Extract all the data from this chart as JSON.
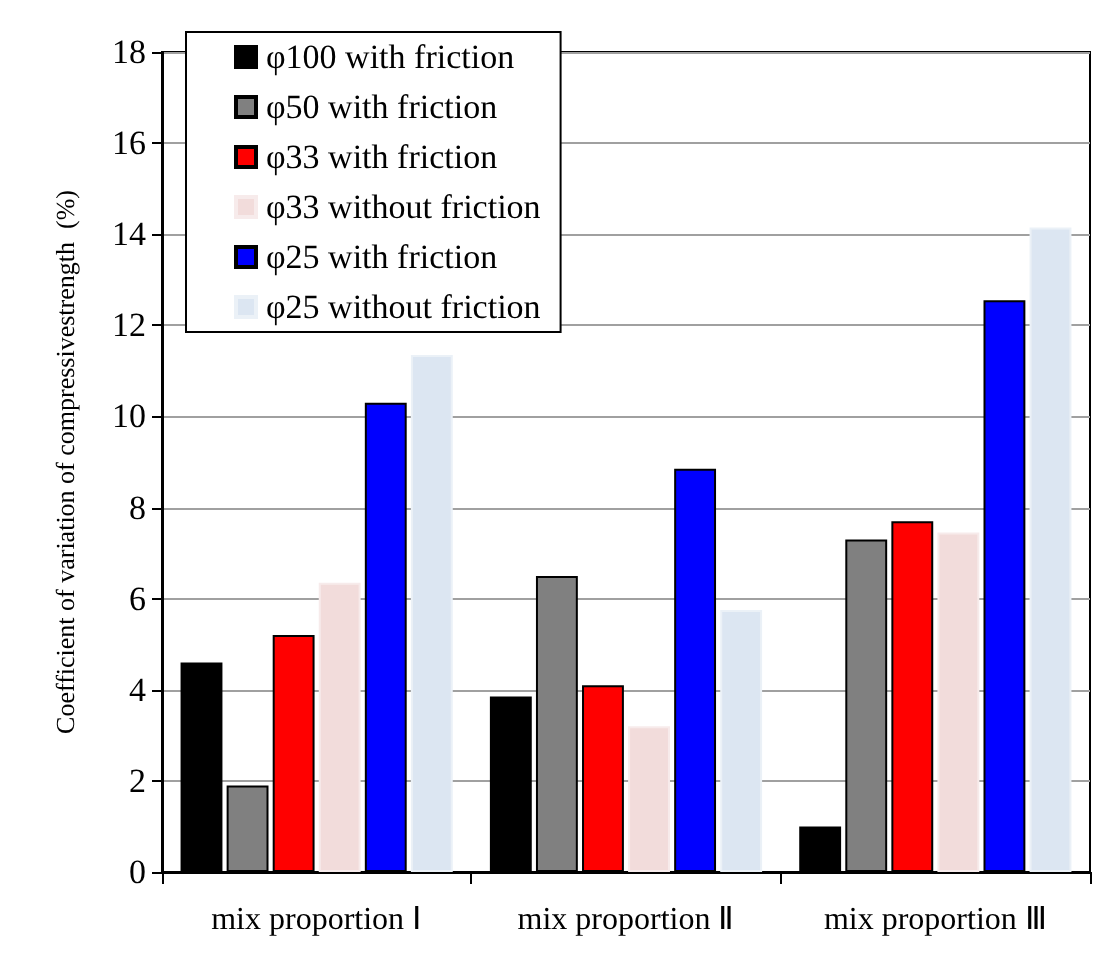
{
  "chart_data": {
    "type": "bar",
    "ylabel": "Coefficient of variation of compressivestrength  (%)",
    "categories": [
      "mix proportion Ⅰ",
      "mix proportion Ⅱ",
      "mix proportion Ⅲ"
    ],
    "series": [
      {
        "name": "φ100 with friction",
        "color": "#000000",
        "values": [
          4.6,
          3.85,
          1.0
        ]
      },
      {
        "name": "φ50 with friction",
        "color": "#808080",
        "values": [
          1.9,
          6.5,
          7.3
        ]
      },
      {
        "name": "φ33 with friction",
        "color": "#ff0000",
        "values": [
          5.2,
          4.1,
          7.7
        ]
      },
      {
        "name": "φ33 without friction",
        "color": "#f2dcdb",
        "values": [
          6.35,
          3.2,
          7.45
        ]
      },
      {
        "name": "φ25 with friction",
        "color": "#0000ff",
        "values": [
          10.3,
          8.85,
          12.55
        ]
      },
      {
        "name": "φ25 without friction",
        "color": "#dce6f2",
        "values": [
          11.35,
          5.75,
          14.15
        ]
      }
    ],
    "ylim": [
      0,
      18
    ],
    "yticks": [
      0,
      2,
      4,
      6,
      8,
      10,
      12,
      14,
      16,
      18
    ],
    "grid": "y",
    "legend": "top left"
  }
}
